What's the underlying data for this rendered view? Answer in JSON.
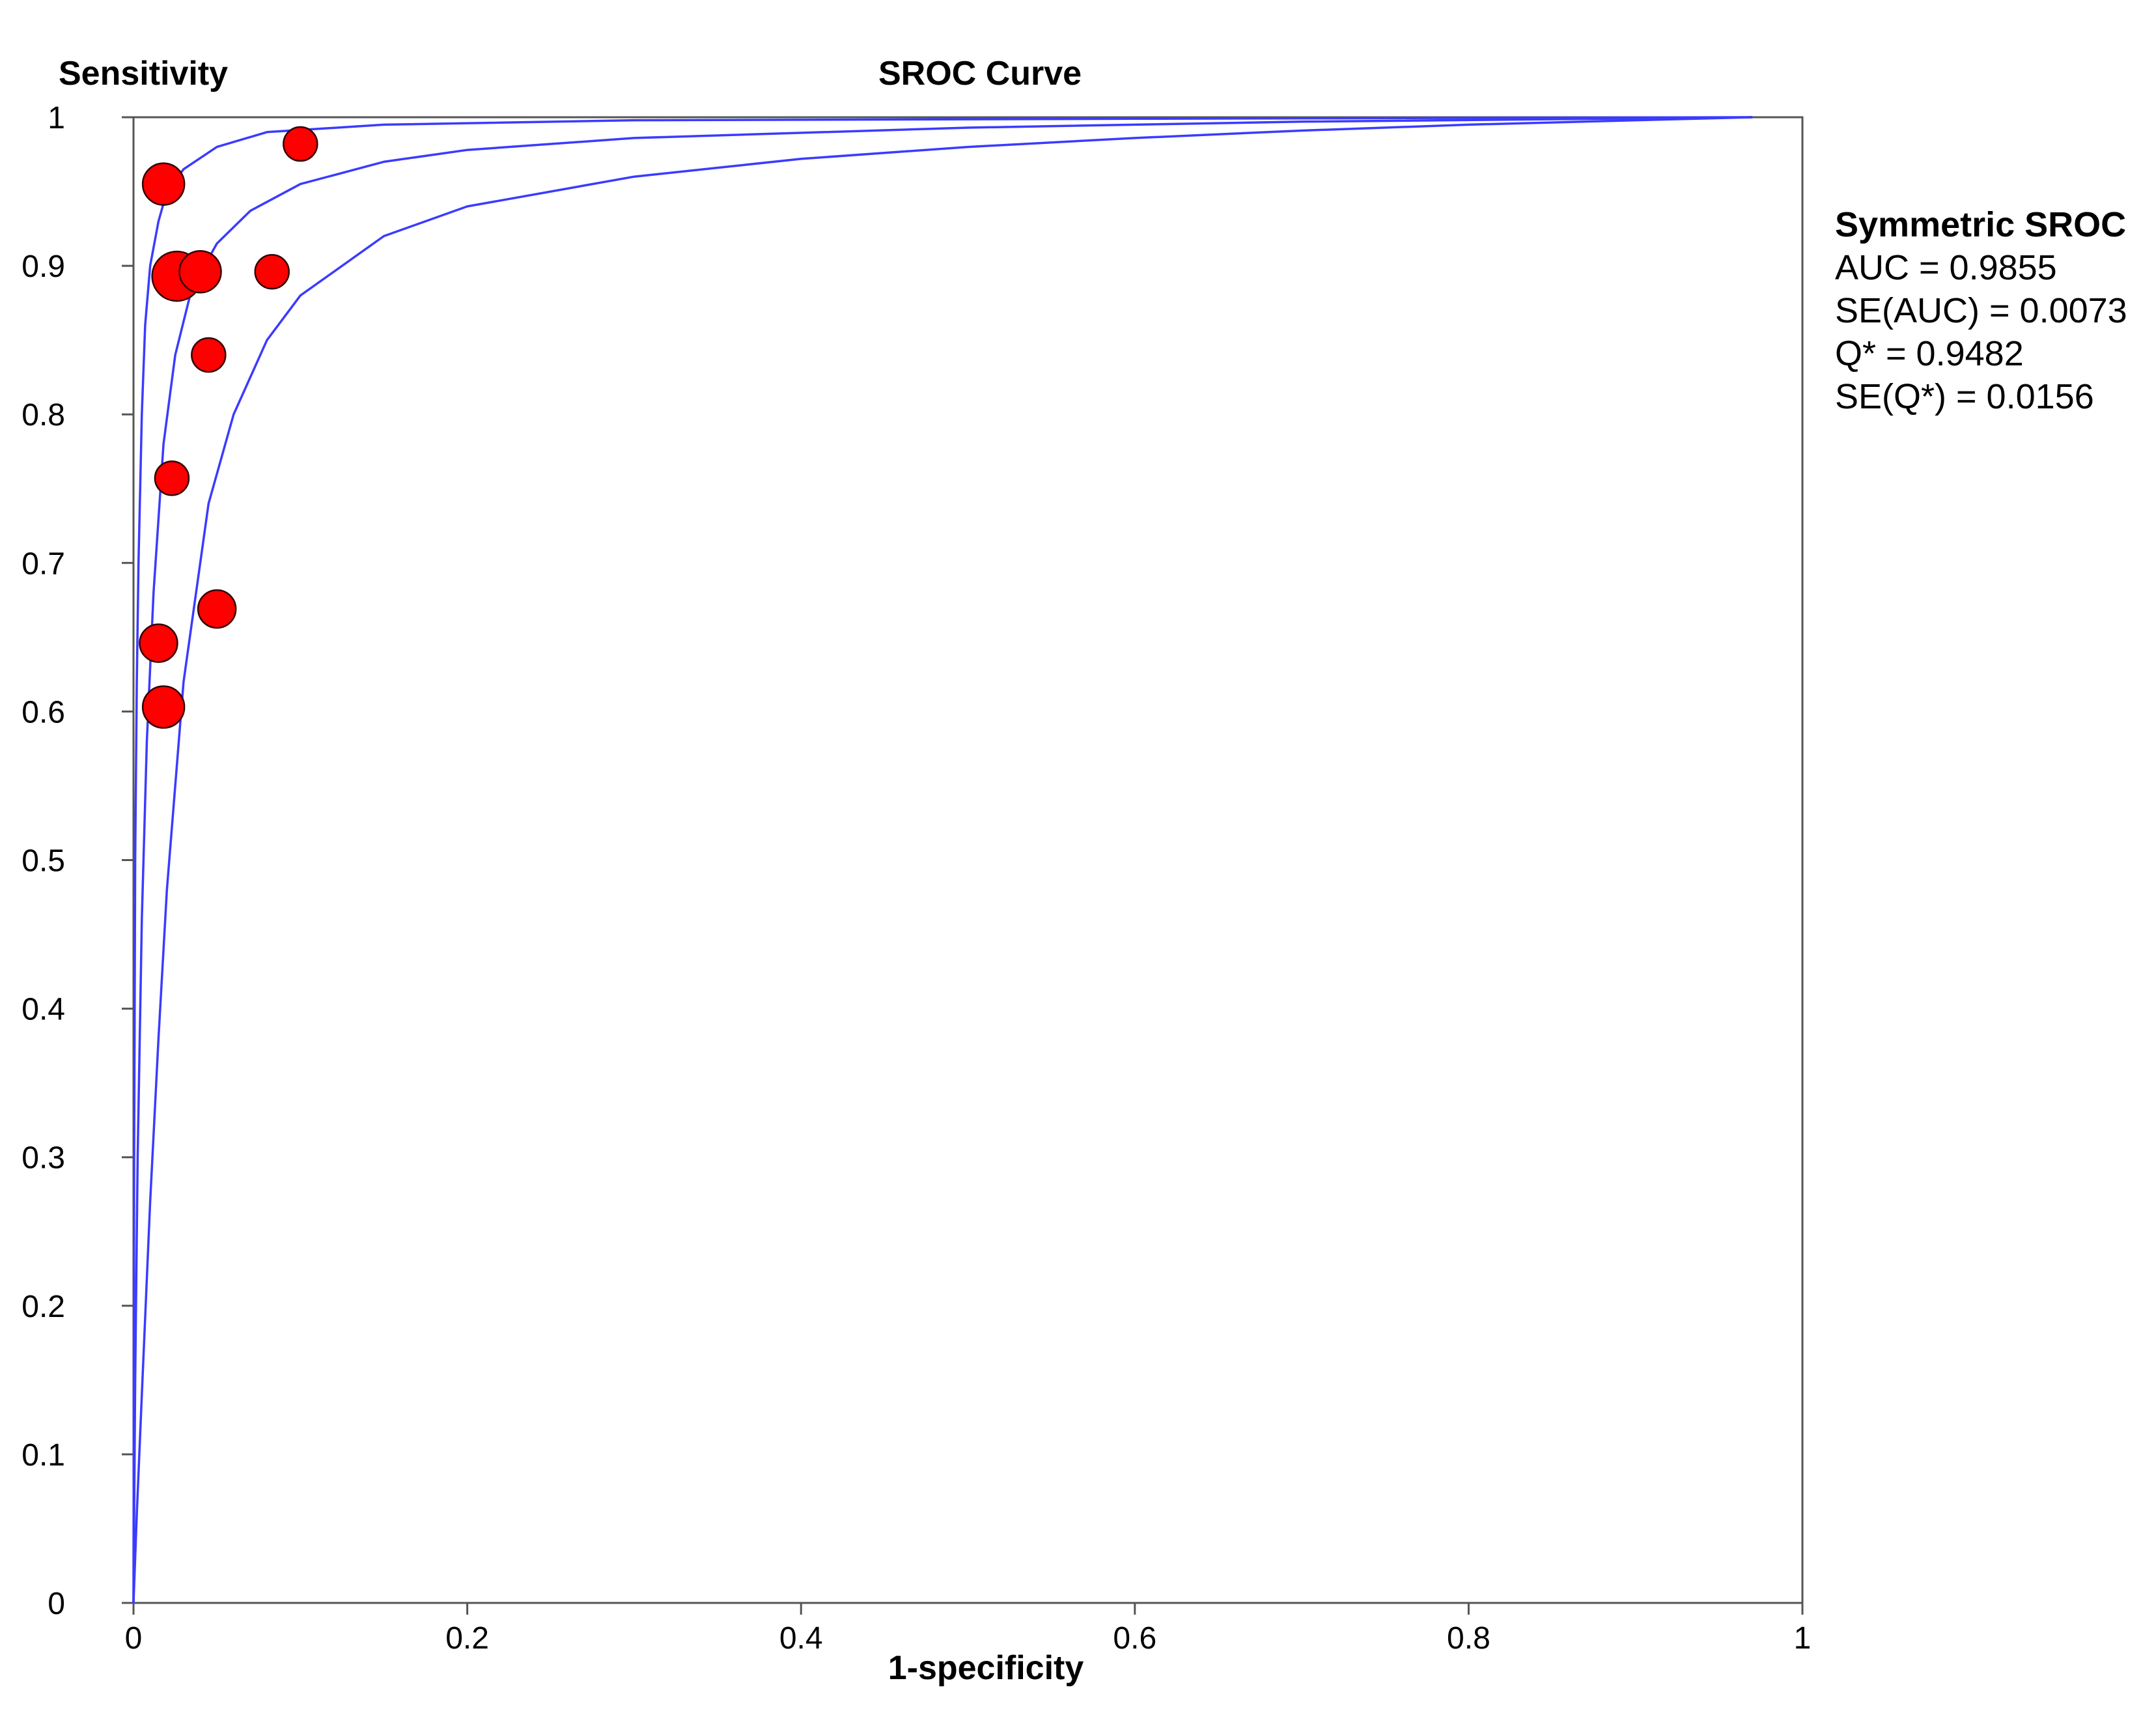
{
  "chart_data": {
    "type": "scatter",
    "title": "SROC Curve",
    "xlabel": "1-specificity",
    "ylabel": "Sensitivity",
    "xlim": [
      0,
      1
    ],
    "ylim": [
      0,
      1
    ],
    "x_ticks": [
      "0",
      "0.2",
      "0.4",
      "0.6",
      "0.8",
      "1"
    ],
    "y_ticks": [
      "0",
      "0.1",
      "0.2",
      "0.3",
      "0.4",
      "0.5",
      "0.6",
      "0.7",
      "0.8",
      "0.9",
      "1"
    ],
    "grid": false,
    "curve_color": "#3b3bff",
    "point_color": "#ff0000",
    "series": [
      {
        "kind": "curve",
        "points": [
          [
            0,
            0
          ],
          [
            0.0004,
            0.3
          ],
          [
            0.001,
            0.5
          ],
          [
            0.002,
            0.62
          ],
          [
            0.003,
            0.7
          ],
          [
            0.005,
            0.8
          ],
          [
            0.007,
            0.86
          ],
          [
            0.01,
            0.9
          ],
          [
            0.015,
            0.93
          ],
          [
            0.02,
            0.95
          ],
          [
            0.03,
            0.965
          ],
          [
            0.05,
            0.98
          ],
          [
            0.08,
            0.99
          ],
          [
            0.15,
            0.995
          ],
          [
            0.3,
            0.998
          ],
          [
            0.6,
            0.999
          ],
          [
            0.97,
            1
          ]
        ]
      },
      {
        "kind": "curve",
        "points": [
          [
            0,
            0
          ],
          [
            0.001,
            0.15
          ],
          [
            0.0025,
            0.3
          ],
          [
            0.005,
            0.46
          ],
          [
            0.008,
            0.58
          ],
          [
            0.012,
            0.68
          ],
          [
            0.018,
            0.78
          ],
          [
            0.025,
            0.84
          ],
          [
            0.035,
            0.885
          ],
          [
            0.05,
            0.915
          ],
          [
            0.07,
            0.937
          ],
          [
            0.1,
            0.955
          ],
          [
            0.15,
            0.97
          ],
          [
            0.2,
            0.978
          ],
          [
            0.3,
            0.986
          ],
          [
            0.5,
            0.993
          ],
          [
            0.7,
            0.997
          ],
          [
            0.97,
            1
          ]
        ]
      },
      {
        "kind": "curve",
        "points": [
          [
            0,
            0
          ],
          [
            0.002,
            0.06
          ],
          [
            0.005,
            0.14
          ],
          [
            0.01,
            0.27
          ],
          [
            0.015,
            0.38
          ],
          [
            0.02,
            0.48
          ],
          [
            0.03,
            0.62
          ],
          [
            0.045,
            0.74
          ],
          [
            0.06,
            0.8
          ],
          [
            0.08,
            0.85
          ],
          [
            0.1,
            0.88
          ],
          [
            0.15,
            0.92
          ],
          [
            0.2,
            0.94
          ],
          [
            0.3,
            0.96
          ],
          [
            0.4,
            0.972
          ],
          [
            0.5,
            0.98
          ],
          [
            0.6,
            0.986
          ],
          [
            0.7,
            0.991
          ],
          [
            0.8,
            0.995
          ],
          [
            0.9,
            0.998
          ],
          [
            0.97,
            1
          ]
        ]
      },
      {
        "kind": "studies",
        "points": [
          {
            "x": 0.018,
            "y": 0.955,
            "size": 3
          },
          {
            "x": 0.1,
            "y": 0.982,
            "size": 2
          },
          {
            "x": 0.026,
            "y": 0.893,
            "size": 4
          },
          {
            "x": 0.04,
            "y": 0.896,
            "size": 3
          },
          {
            "x": 0.083,
            "y": 0.896,
            "size": 2
          },
          {
            "x": 0.045,
            "y": 0.84,
            "size": 2
          },
          {
            "x": 0.023,
            "y": 0.757,
            "size": 2
          },
          {
            "x": 0.05,
            "y": 0.669,
            "size": 2.5
          },
          {
            "x": 0.015,
            "y": 0.646,
            "size": 2.5
          },
          {
            "x": 0.018,
            "y": 0.603,
            "size": 3
          }
        ]
      }
    ]
  },
  "stats_panel": {
    "heading": "Symmetric SROC",
    "auc": "AUC = 0.9855",
    "se_auc": "SE(AUC) = 0.0073",
    "q_star": "Q* = 0.9482",
    "se_q_star": "SE(Q*) = 0.0156"
  }
}
